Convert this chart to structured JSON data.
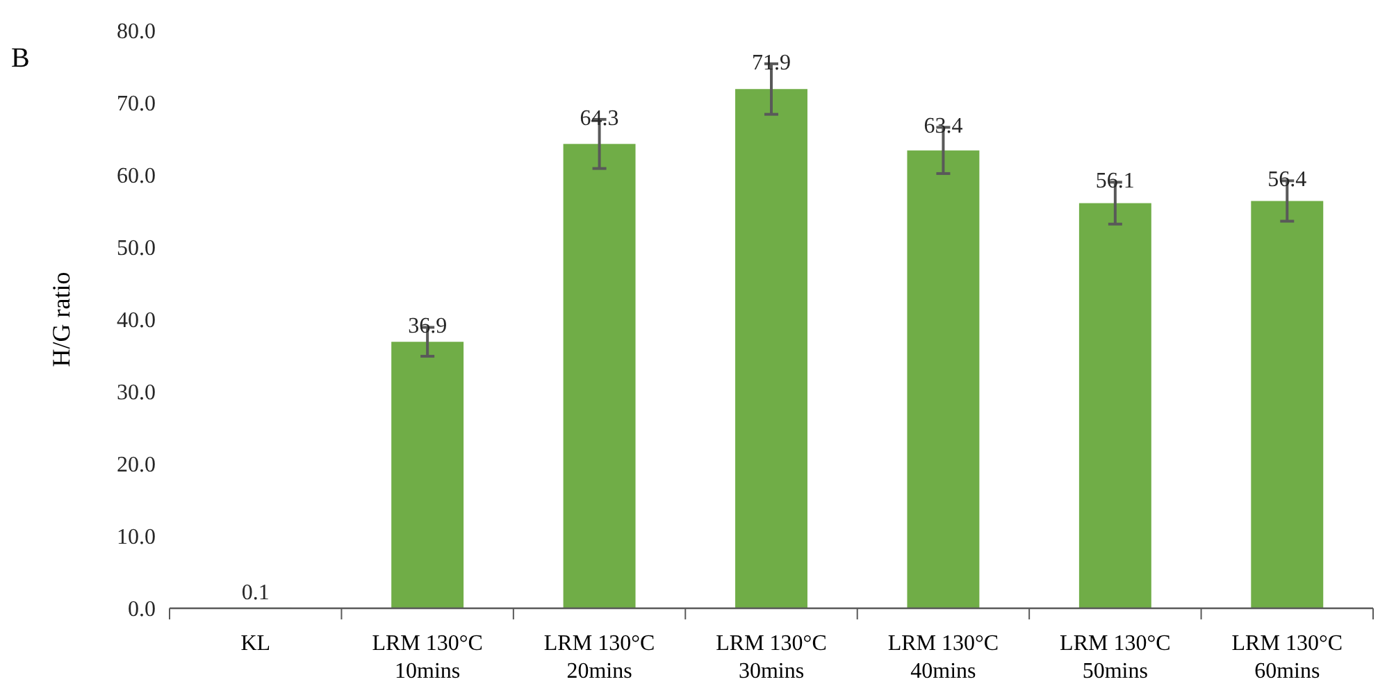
{
  "chart_data": {
    "type": "bar",
    "title": "B",
    "ylabel": "H/G ratio",
    "categories": [
      "KL",
      "LRM 130°C\n10mins",
      "LRM 130°C\n20mins",
      "LRM 130°C\n30mins",
      "LRM 130°C\n40mins",
      "LRM 130°C\n50mins",
      "LRM 130°C\n60mins"
    ],
    "values": [
      0.1,
      36.9,
      64.3,
      71.9,
      63.4,
      56.1,
      56.4
    ],
    "errors": [
      null,
      2.0,
      3.4,
      3.5,
      3.2,
      2.9,
      2.8
    ],
    "color": "#70ad47",
    "data_labels": true,
    "grid": false,
    "ylim": [
      0,
      80
    ],
    "yticks": [
      {
        "value": 0,
        "label": "0.0"
      },
      {
        "value": 10,
        "label": "10.0"
      },
      {
        "value": 20,
        "label": "20.0"
      },
      {
        "value": 30,
        "label": "30.0"
      },
      {
        "value": 40,
        "label": "40.0"
      },
      {
        "value": 50,
        "label": "50.0"
      },
      {
        "value": 60,
        "label": "60.0"
      },
      {
        "value": 70,
        "label": "70.0"
      },
      {
        "value": 80,
        "label": "80.0"
      }
    ]
  }
}
